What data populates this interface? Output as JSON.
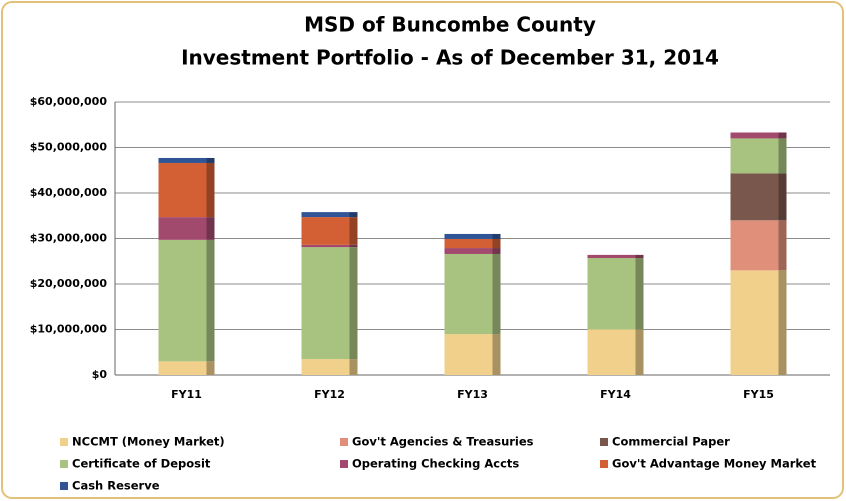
{
  "chart_data": {
    "type": "stacked_bar",
    "title": "MSD of Buncombe County",
    "subtitle": "Investment Portfolio - As of December 31, 2014",
    "categories": [
      "FY11",
      "FY12",
      "FY13",
      "FY14",
      "FY15"
    ],
    "series": [
      {
        "name": "NCCMT (Money Market)",
        "color": "#f0d08a",
        "values": [
          3000000,
          3500000,
          9000000,
          10000000,
          23000000
        ]
      },
      {
        "name": "Gov't Agencies & Treasuries",
        "color": "#e0907a",
        "values": [
          0,
          0,
          0,
          0,
          11000000
        ]
      },
      {
        "name": "Commercial  Paper",
        "color": "#7a574c",
        "values": [
          0,
          0,
          0,
          0,
          10300000
        ]
      },
      {
        "name": "Certificate of Deposit",
        "color": "#a8c27f",
        "values": [
          26700000,
          24600000,
          17600000,
          15700000,
          7700000
        ]
      },
      {
        "name": "Operating Checking Accts",
        "color": "#a24a6e",
        "values": [
          5000000,
          500000,
          1300000,
          700000,
          1300000
        ]
      },
      {
        "name": "Gov't Advantage Money Market",
        "color": "#d35f34",
        "values": [
          11900000,
          6100000,
          2000000,
          0,
          0
        ]
      },
      {
        "name": "Cash  Reserve",
        "color": "#2f5597",
        "values": [
          1100000,
          1100000,
          1100000,
          0,
          0
        ]
      }
    ],
    "ylim": [
      0,
      60000000
    ],
    "yticks": [
      {
        "value": 0,
        "label": "$0"
      },
      {
        "value": 10000000,
        "label": "$10,000,000"
      },
      {
        "value": 20000000,
        "label": "$20,000,000"
      },
      {
        "value": 30000000,
        "label": "$30,000,000"
      },
      {
        "value": 40000000,
        "label": "$40,000,000"
      },
      {
        "value": 50000000,
        "label": "$50,000,000"
      },
      {
        "value": 60000000,
        "label": "$60,000,000"
      }
    ],
    "grid": true
  }
}
